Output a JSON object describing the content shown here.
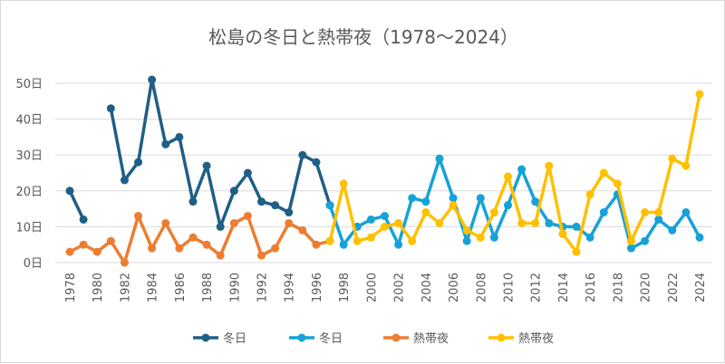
{
  "chart_data": {
    "type": "line",
    "title": "松島の冬日と熱帯夜（1978～2024）",
    "y_unit_suffix": "日",
    "ylim": [
      0,
      50
    ],
    "yticks": [
      0,
      10,
      20,
      30,
      40,
      50
    ],
    "x_start": 1978,
    "x_end": 2024,
    "xtick_step": 2,
    "grid": "horizontal",
    "legend": "bottom",
    "series": [
      {
        "name": "冬日",
        "color": "#1f5f86",
        "x_start": 1978,
        "values": [
          20,
          12,
          null,
          43,
          23,
          28,
          51,
          33,
          35,
          17,
          27,
          10,
          20,
          25,
          17,
          16,
          14,
          30,
          28,
          16
        ]
      },
      {
        "name": "冬日",
        "color": "#16a2d7",
        "x_start": 1997,
        "values": [
          16,
          5,
          10,
          12,
          13,
          5,
          18,
          17,
          29,
          18,
          6,
          18,
          7,
          16,
          26,
          17,
          11,
          10,
          10,
          7,
          14,
          19,
          4,
          6,
          12,
          9,
          14,
          7
        ]
      },
      {
        "name": "熱帯夜",
        "color": "#ed7d31",
        "x_start": 1978,
        "values": [
          3,
          5,
          3,
          6,
          0,
          13,
          4,
          11,
          4,
          7,
          5,
          2,
          11,
          13,
          2,
          4,
          11,
          9,
          5,
          6
        ]
      },
      {
        "name": "熱帯夜",
        "color": "#ffc000",
        "x_start": 1997,
        "values": [
          6,
          22,
          6,
          7,
          10,
          11,
          6,
          14,
          11,
          16,
          9,
          7,
          14,
          24,
          11,
          11,
          27,
          8,
          3,
          19,
          25,
          22,
          6,
          14,
          14,
          29,
          27,
          47
        ]
      }
    ]
  }
}
